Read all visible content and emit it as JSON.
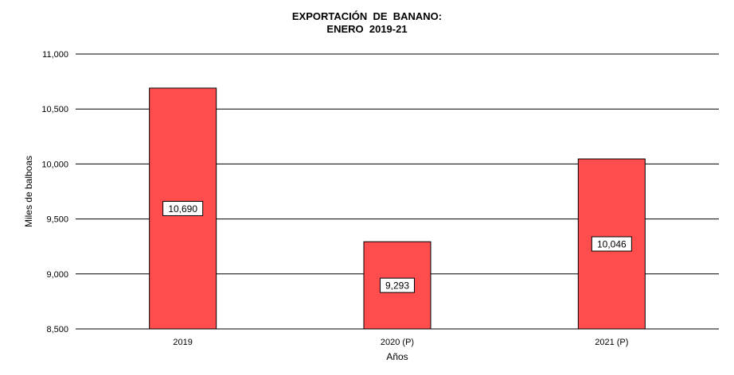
{
  "chart_data": {
    "type": "bar",
    "title_line1": "EXPORTACIÓN  DE  BANANO:",
    "title_line2": "ENERO  2019-21",
    "xlabel": "Años",
    "ylabel": "Miles de balboas",
    "categories": [
      "2019",
      "2020 (P)",
      "2021 (P)"
    ],
    "values": [
      10690,
      9293,
      10046
    ],
    "data_labels": [
      "10,690",
      "9,293",
      "10,046"
    ],
    "ylim": [
      8500,
      11000
    ],
    "yticks": [
      8500,
      9000,
      9500,
      10000,
      10500,
      11000
    ],
    "ytick_labels": [
      "8,500",
      "9,000",
      "9,500",
      "10,000",
      "10,500",
      "11,000"
    ],
    "grid": true,
    "bar_color": "#ff4d4d"
  }
}
